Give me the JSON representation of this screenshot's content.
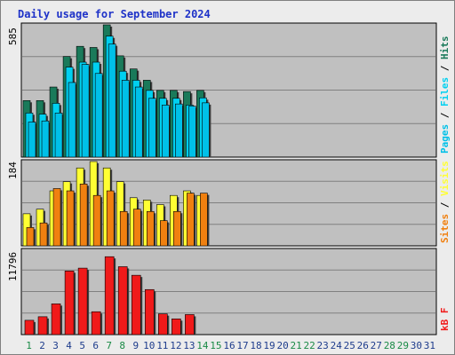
{
  "title": "Daily usage for September 2024",
  "colors": {
    "panel_bg": "#c0c0c0",
    "gridline": "#808080",
    "title": "#1e32c8",
    "hits": "#1a7a5a",
    "files": "#00d0f0",
    "pages": "#00c0e8",
    "visits": "#ffff33",
    "sites": "#f08010",
    "kbf": "#f01a1a",
    "weekday": "#1e3c8c",
    "weekend": "#1a8a46"
  },
  "legend": {
    "top": {
      "pages": "Pages",
      "sep1": " / ",
      "files": "Files",
      "sep2": " / ",
      "hits": "Hits"
    },
    "mid": {
      "sites": "Sites",
      "sep1": " / ",
      "visits": "Visits"
    },
    "bottom": {
      "kbf": "kB F"
    }
  },
  "axis_max_labels": {
    "top": "585",
    "mid": "184",
    "bottom": "11796"
  },
  "chart_data": [
    {
      "type": "bar",
      "title": "Daily usage for September 2024",
      "categories": [
        "1",
        "2",
        "3",
        "4",
        "5",
        "6",
        "7",
        "8",
        "9",
        "10",
        "11",
        "12",
        "13",
        "14",
        "15",
        "16",
        "17",
        "18",
        "19",
        "20",
        "21",
        "22",
        "23",
        "24",
        "25",
        "26",
        "27",
        "28",
        "29",
        "30",
        "31"
      ],
      "weekend_days": [
        "1",
        "7",
        "8",
        "14",
        "15",
        "21",
        "22",
        "28",
        "29"
      ],
      "ylim": [
        0,
        585
      ],
      "series": [
        {
          "name": "Hits",
          "values": [
            250,
            250,
            310,
            445,
            490,
            485,
            585,
            448,
            390,
            340,
            295,
            295,
            290,
            295,
            0,
            0,
            0,
            0,
            0,
            0,
            0,
            0,
            0,
            0,
            0,
            0,
            0,
            0,
            0,
            0,
            0
          ]
        },
        {
          "name": "Files",
          "values": [
            195,
            190,
            238,
            398,
            420,
            420,
            535,
            380,
            340,
            295,
            260,
            260,
            230,
            262,
            0,
            0,
            0,
            0,
            0,
            0,
            0,
            0,
            0,
            0,
            0,
            0,
            0,
            0,
            0,
            0,
            0
          ]
        },
        {
          "name": "Pages",
          "values": [
            155,
            160,
            195,
            330,
            410,
            370,
            500,
            340,
            310,
            260,
            230,
            235,
            225,
            240,
            0,
            0,
            0,
            0,
            0,
            0,
            0,
            0,
            0,
            0,
            0,
            0,
            0,
            0,
            0,
            0,
            0
          ]
        }
      ]
    },
    {
      "type": "bar",
      "categories": [
        "1",
        "2",
        "3",
        "4",
        "5",
        "6",
        "7",
        "8",
        "9",
        "10",
        "11",
        "12",
        "13",
        "14",
        "15",
        "16",
        "17",
        "18",
        "19",
        "20",
        "21",
        "22",
        "23",
        "24",
        "25",
        "26",
        "27",
        "28",
        "29",
        "30",
        "31"
      ],
      "ylim": [
        0,
        184
      ],
      "series": [
        {
          "name": "Visits",
          "values": [
            70,
            80,
            120,
            140,
            170,
            184,
            170,
            140,
            105,
            100,
            90,
            110,
            120,
            110,
            0,
            0,
            0,
            0,
            0,
            0,
            0,
            0,
            0,
            0,
            0,
            0,
            0,
            0,
            0,
            0,
            0
          ]
        },
        {
          "name": "Sites",
          "values": [
            40,
            50,
            125,
            120,
            135,
            110,
            120,
            75,
            80,
            75,
            55,
            75,
            115,
            115,
            0,
            0,
            0,
            0,
            0,
            0,
            0,
            0,
            0,
            0,
            0,
            0,
            0,
            0,
            0,
            0,
            0
          ]
        }
      ]
    },
    {
      "type": "bar",
      "categories": [
        "1",
        "2",
        "3",
        "4",
        "5",
        "6",
        "7",
        "8",
        "9",
        "10",
        "11",
        "12",
        "13",
        "14",
        "15",
        "16",
        "17",
        "18",
        "19",
        "20",
        "21",
        "22",
        "23",
        "24",
        "25",
        "26",
        "27",
        "28",
        "29",
        "30",
        "31"
      ],
      "ylim": [
        0,
        11796
      ],
      "series": [
        {
          "name": "kB F",
          "values": [
            2000,
            2500,
            4300,
            8900,
            9300,
            3200,
            10900,
            9500,
            8300,
            6300,
            2900,
            2200,
            2800,
            0,
            0,
            0,
            0,
            0,
            0,
            0,
            0,
            0,
            0,
            0,
            0,
            0,
            0,
            0,
            0,
            0,
            0
          ]
        }
      ]
    }
  ]
}
